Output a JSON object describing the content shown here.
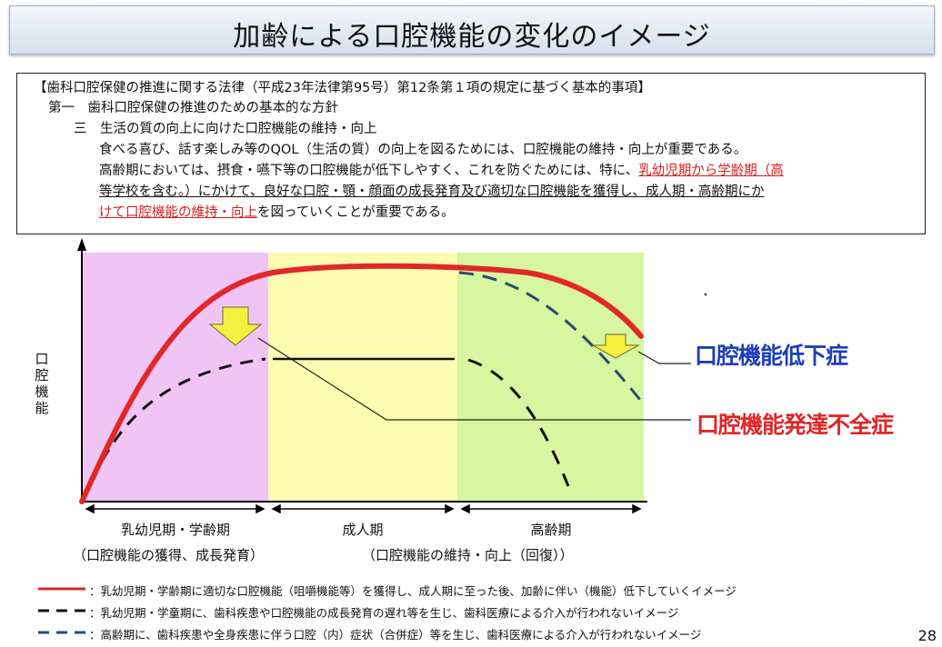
{
  "title": "加齢による口腔機能の変化のイメージ",
  "law": {
    "line1": "【歯科口腔保健の推進に関する法律（平成23年法律第95号）第12条第１項の規定に基づく基本的事項】",
    "line2": "第一　歯科口腔保健の推進のための基本的な方針",
    "line3": "三　生活の質の向上に向けた口腔機能の維持・向上",
    "line4": "食べる喜び、話す楽しみ等のQOL（生活の質）の向上を図るためには、口腔機能の維持・向上が重要である。",
    "line5a": "高齢期においては、摂食・嚥下等の口腔機能が低下しやすく、これを防ぐためには、特に、",
    "line5b": "乳幼児期から学齢期（高",
    "line6": "等学校を含む。）にかけて、良好な口腔・顎・顔面の成長発育及び適切な口腔機能を獲得し、成人期・高齢期にか",
    "line7a": "けて口腔機能の維持・向上",
    "line7b": "を図っていくことが重要である。"
  },
  "chart": {
    "ylabel": "口腔機能",
    "periods": [
      "乳幼児期・学齢期",
      "成人期",
      "高齢期"
    ],
    "sub_left": "（口腔機能の獲得、成長発育）",
    "sub_right": "（口腔機能の維持・向上（回復））",
    "colors": {
      "period1": "#f0c4f4",
      "period2": "#fdfcb0",
      "period3": "#d8f5a0",
      "red": "#e02828",
      "black": "#111111",
      "blue": "#2b4a73",
      "arrow": "#f5f040"
    }
  },
  "annotations": {
    "blue": "口腔機能低下症",
    "red": "口腔機能発達不全症"
  },
  "legend": [
    {
      "text": "：乳幼児期・学齢期に適切な口腔機能（咀嚼機能等）を獲得し、成人期に至った後、加齢に伴い（機能）低下していくイメージ",
      "color": "#e02828",
      "style": "solid"
    },
    {
      "text": "：乳幼児期・学童期に、歯科疾患や口腔機能の成長発育の遅れ等を生じ、歯科医療による介入が行われないイメージ",
      "color": "#111111",
      "style": "dash"
    },
    {
      "text": "：高齢期に、歯科疾患や全身疾患に伴う口腔（内）症状（合併症）等を生じ、歯科医療による介入が行われないイメージ",
      "color": "#2b4a73",
      "style": "dash"
    }
  ],
  "page_number": "28"
}
